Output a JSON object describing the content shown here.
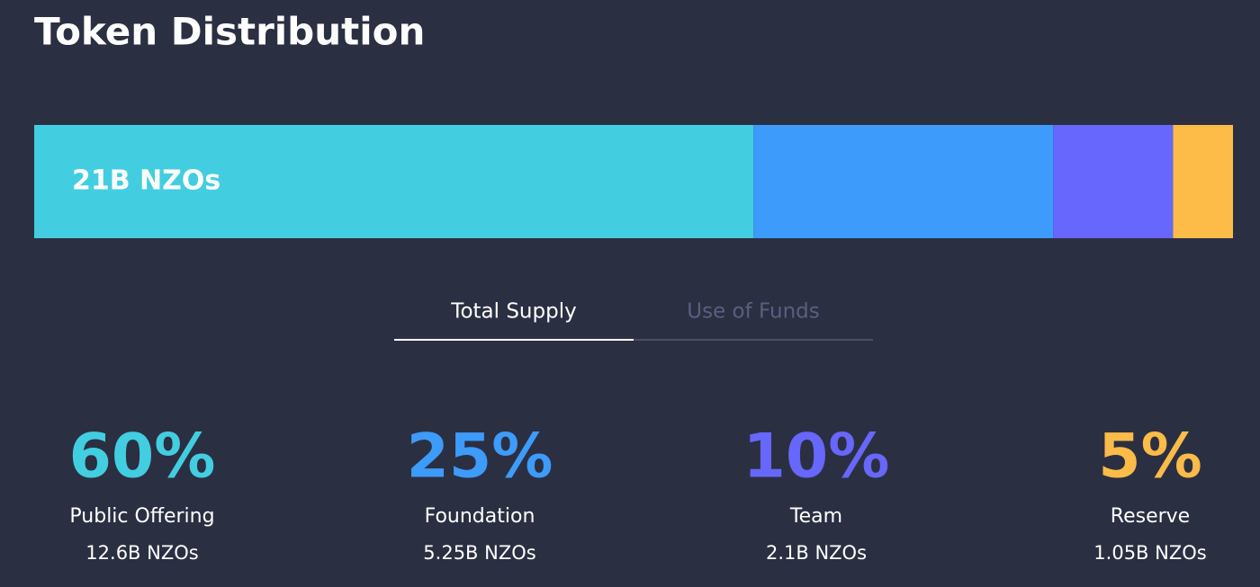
{
  "chart_data": {
    "type": "stacked-bar",
    "title": "Token Distribution",
    "bar_label": "21B NZOs",
    "tabs": [
      "Total Supply",
      "Use of Funds"
    ],
    "active_tab": 0,
    "categories": [
      "Public Offering",
      "Foundation",
      "Team",
      "Reserve"
    ],
    "values": [
      60,
      25,
      10,
      5
    ],
    "value_labels": [
      "60%",
      "25%",
      "10%",
      "5%"
    ],
    "amounts": [
      "12.6B NZOs",
      "5.25B NZOs",
      "2.1B NZOs",
      "1.05B NZOs"
    ],
    "colors": [
      "#43cde0",
      "#3d9bfc",
      "#6766fd",
      "#fdbb48"
    ]
  }
}
